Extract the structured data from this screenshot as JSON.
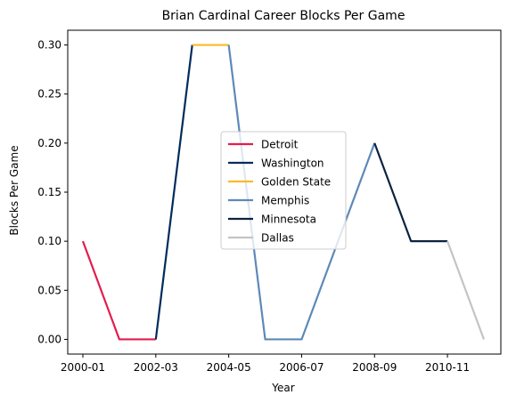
{
  "chart_data": {
    "type": "line",
    "title": "Brian Cardinal Career Blocks Per Game",
    "xlabel": "Year",
    "ylabel": "Blocks Per Game",
    "x_tick_labels": [
      "2000-01",
      "2002-03",
      "2004-05",
      "2006-07",
      "2008-09",
      "2010-11"
    ],
    "y_tick_labels": [
      "0.00",
      "0.05",
      "0.10",
      "0.15",
      "0.20",
      "0.25",
      "0.30"
    ],
    "y_ticks": [
      0,
      0.05,
      0.1,
      0.15,
      0.2,
      0.25,
      0.3
    ],
    "ylim": [
      -0.015,
      0.315
    ],
    "grid": false,
    "legend_position": "center-right",
    "series": [
      {
        "name": "Detroit",
        "color": "#E31C4C",
        "points": [
          [
            "2000-01",
            0.1
          ],
          [
            "2001-02",
            0.0
          ],
          [
            "2002-03",
            0.0
          ]
        ]
      },
      {
        "name": "Washington",
        "color": "#002B5C",
        "points": [
          [
            "2002-03",
            0.0
          ],
          [
            "2003-04",
            0.3
          ]
        ]
      },
      {
        "name": "Golden State",
        "color": "#FDB927",
        "points": [
          [
            "2003-04",
            0.3
          ],
          [
            "2004-05",
            0.3
          ]
        ]
      },
      {
        "name": "Memphis",
        "color": "#5D89B7",
        "points": [
          [
            "2004-05",
            0.3
          ],
          [
            "2005-06",
            0.0
          ],
          [
            "2006-07",
            0.0
          ],
          [
            "2007-08",
            0.1
          ],
          [
            "2008-09",
            0.2
          ]
        ]
      },
      {
        "name": "Minnesota",
        "color": "#0C2340",
        "points": [
          [
            "2008-09",
            0.2
          ],
          [
            "2009-10",
            0.1
          ],
          [
            "2010-11",
            0.1
          ]
        ]
      },
      {
        "name": "Dallas",
        "color": "#C4C4C4",
        "points": [
          [
            "2010-11",
            0.1
          ],
          [
            "2011-12",
            0.0
          ]
        ]
      }
    ]
  }
}
